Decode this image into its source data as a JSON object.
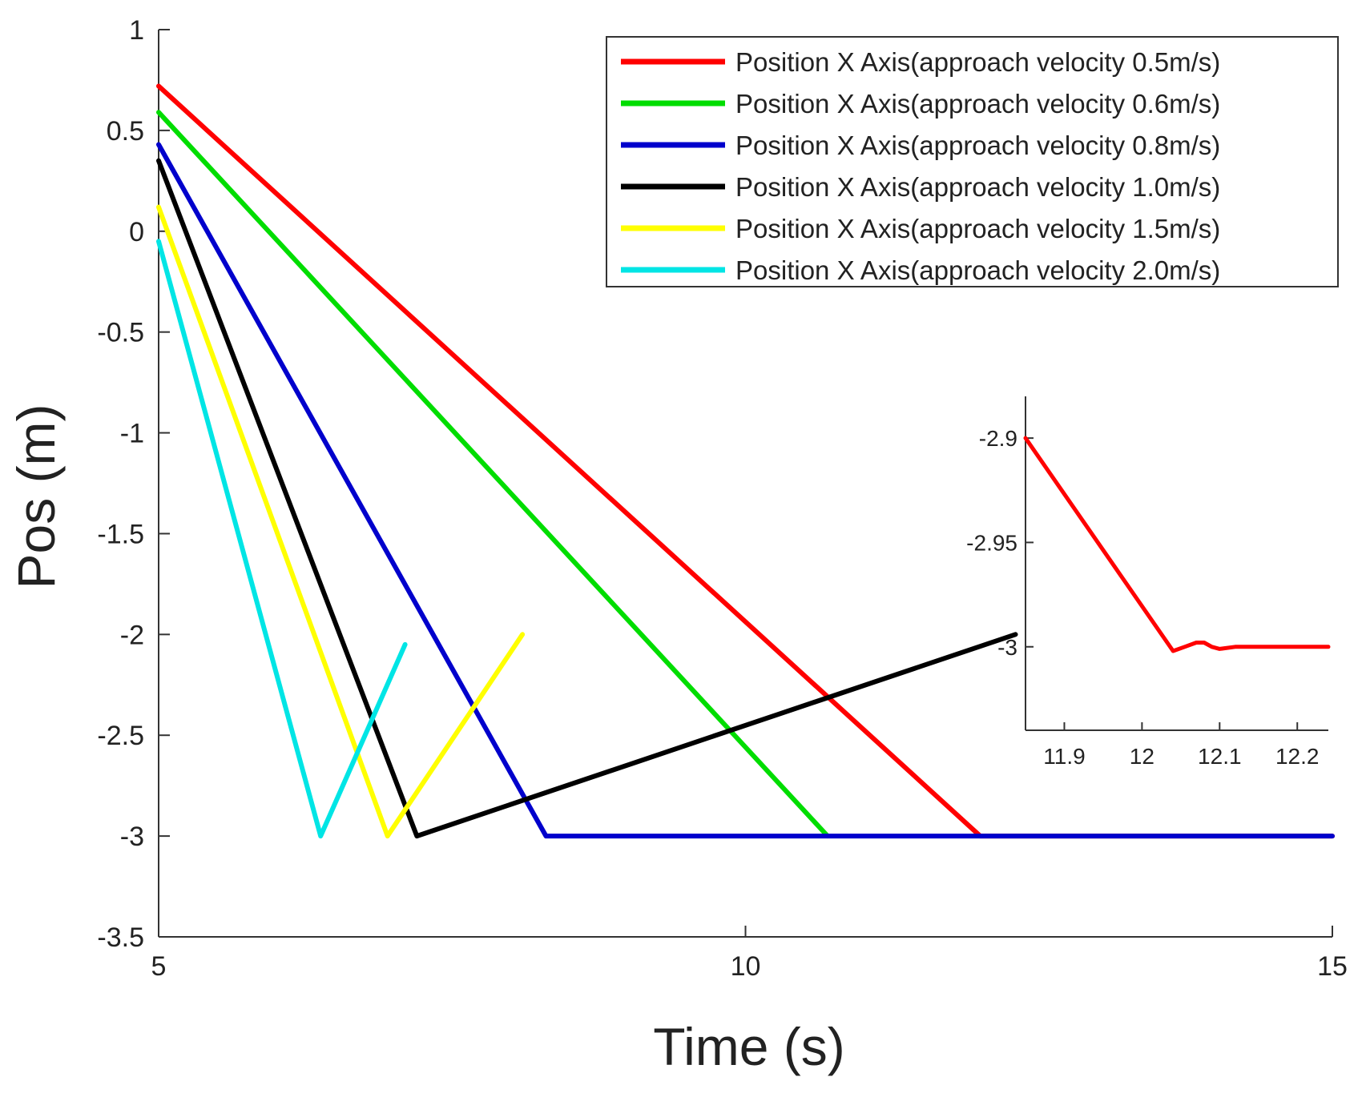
{
  "chart_data": [
    {
      "type": "line",
      "xlabel": "Time (s)",
      "ylabel": "Pos  (m)",
      "xlim": [
        5,
        15
      ],
      "ylim": [
        -3.5,
        1
      ],
      "xticks": [
        5,
        10,
        15
      ],
      "xtick_labels": [
        "5",
        "10",
        "15"
      ],
      "yticks": [
        1,
        0.5,
        0,
        -0.5,
        -1,
        -1.5,
        -2,
        -2.5,
        -3,
        -3.5
      ],
      "ytick_labels": [
        "1",
        "0.5",
        "0",
        "-0.5",
        "-1",
        "-1.5",
        "-2",
        "-2.5",
        "-3",
        "-3.5"
      ],
      "grid": false,
      "legend_position": "top-right",
      "series": [
        {
          "name": "Position X Axis(approach velocity 0.5m/s)",
          "color": "#ff0000",
          "x": [
            5,
            12.0,
            15
          ],
          "y": [
            0.72,
            -3.0,
            -3.0
          ]
        },
        {
          "name": "Position X Axis(approach velocity 0.6m/s)",
          "color": "#00dd00",
          "x": [
            5,
            10.7
          ],
          "y": [
            0.59,
            -3.0
          ]
        },
        {
          "name": "Position X Axis(approach velocity 0.8m/s)",
          "color": "#0000cc",
          "x": [
            5,
            8.3,
            15
          ],
          "y": [
            0.43,
            -3.0,
            -3.0
          ]
        },
        {
          "name": "Position X Axis(approach velocity 1.0m/s)",
          "color": "#000000",
          "x": [
            5,
            7.2,
            12.3
          ],
          "y": [
            0.35,
            -3.0,
            -2.0
          ]
        },
        {
          "name": "Position X Axis(approach velocity 1.5m/s)",
          "color": "#ffff00",
          "x": [
            5,
            6.95,
            8.1
          ],
          "y": [
            0.12,
            -3.0,
            -2.0
          ]
        },
        {
          "name": "Position X Axis(approach velocity 2.0m/s)",
          "color": "#00e5e5",
          "x": [
            5,
            6.38,
            7.1
          ],
          "y": [
            -0.05,
            -3.0,
            -2.05
          ]
        }
      ]
    },
    {
      "type": "line",
      "xlim": [
        11.85,
        12.24
      ],
      "ylim": [
        -3.04,
        -2.88
      ],
      "xticks": [
        11.9,
        12,
        12.1,
        12.2
      ],
      "xtick_labels": [
        "11.9",
        "12",
        "12.1",
        "12.2"
      ],
      "yticks": [
        -2.9,
        -2.95,
        -3
      ],
      "ytick_labels": [
        "-2.9",
        "-2.95",
        "-3"
      ],
      "grid": false,
      "series": [
        {
          "color": "#ff0000",
          "x": [
            11.85,
            12.04,
            12.055,
            12.07,
            12.08,
            12.09,
            12.1,
            12.12,
            12.24
          ],
          "y": [
            -2.9,
            -3.002,
            -3.0,
            -2.998,
            -2.998,
            -3.0,
            -3.001,
            -3.0,
            -3.0
          ]
        }
      ]
    }
  ]
}
